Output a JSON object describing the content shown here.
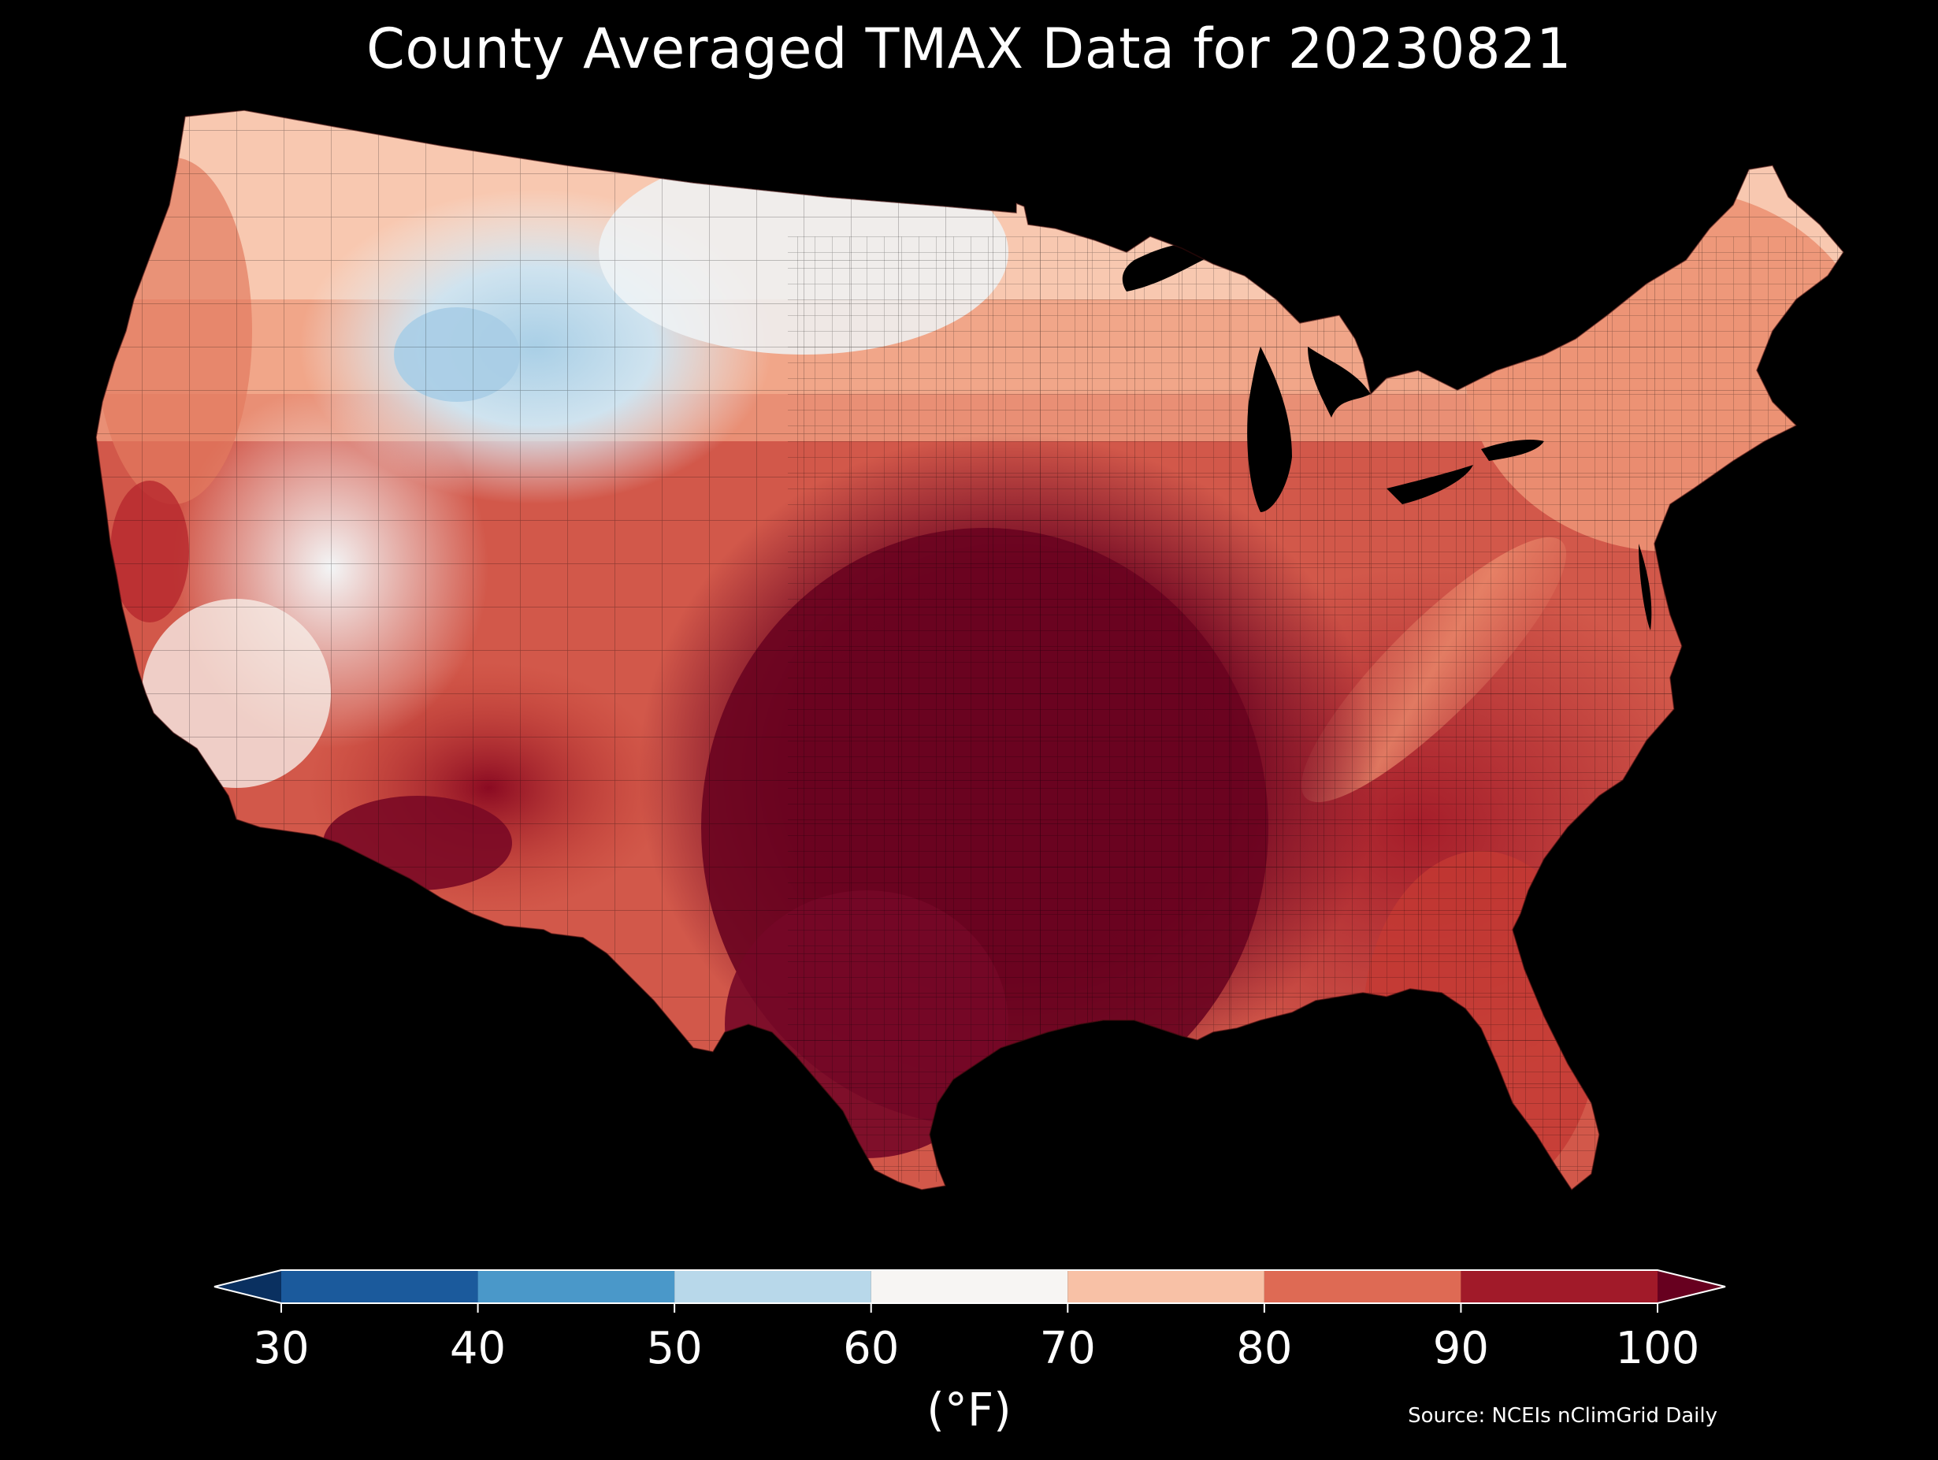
{
  "title": "County Averaged TMAX Data for 20230821",
  "colorbar": {
    "unit_label": "(°F)",
    "ticks": [
      "30",
      "40",
      "50",
      "60",
      "70",
      "80",
      "90",
      "100"
    ],
    "bins": [
      {
        "range": [
          30,
          40
        ],
        "color": "#1b5a9c"
      },
      {
        "range": [
          40,
          50
        ],
        "color": "#4a98c9"
      },
      {
        "range": [
          50,
          60
        ],
        "color": "#b8d8ea"
      },
      {
        "range": [
          60,
          70
        ],
        "color": "#f7f5f3"
      },
      {
        "range": [
          70,
          80
        ],
        "color": "#f8c1a6"
      },
      {
        "range": [
          80,
          90
        ],
        "color": "#de6a54"
      },
      {
        "range": [
          90,
          100
        ],
        "color": "#a11a29"
      }
    ],
    "under_color": "#0a3060",
    "over_color": "#67001f",
    "extend": "both"
  },
  "source": "Source: NCEIs nClimGrid Daily",
  "map": {
    "region": "Contiguous United States",
    "background_color": "#000000",
    "dark_peak_color": "#6a0320",
    "notes_colors": {
      "plains_core": "#6a0320",
      "southeast": "#b22a30",
      "northeast": "#e9866b",
      "northern_rockies": "#cfe2ef",
      "great_basin": "#f2f2f2",
      "pacific_coast": "#e27b5f"
    }
  }
}
